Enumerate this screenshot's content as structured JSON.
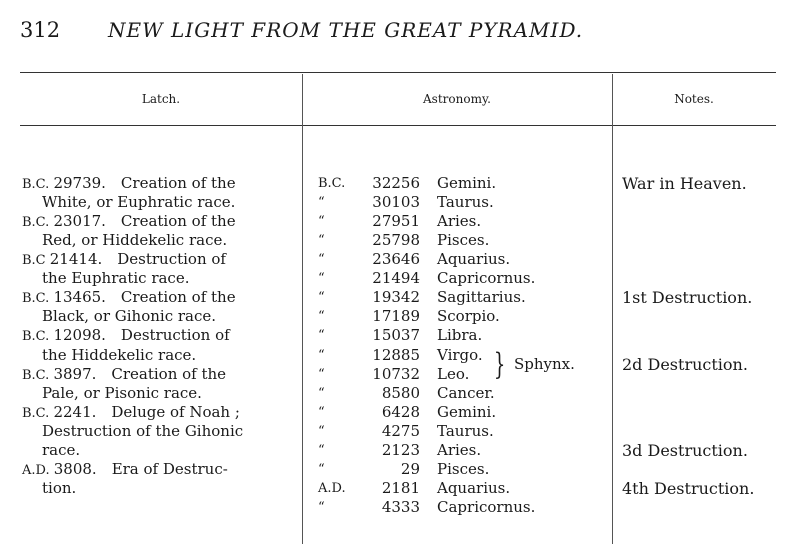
{
  "page_number": "312",
  "running_title": "NEW LIGHT FROM THE GREAT PYRAMID.",
  "headers": {
    "latch": "Latch.",
    "astronomy": "Astronomy.",
    "notes": "Notes."
  },
  "latch": [
    {
      "era": "B.C.",
      "lines": [
        "29739.   Creation of the",
        "White, or Euphratic race."
      ]
    },
    {
      "era": "B.C.",
      "lines": [
        "23017.   Creation of the",
        "Red, or Hiddekelic race."
      ]
    },
    {
      "era": "B.C",
      "lines": [
        "21414.    Destruction of",
        "the Euphratic race."
      ]
    },
    {
      "era": "B.C.",
      "lines": [
        "13465.   Creation of the",
        "Black, or Gihonic race."
      ]
    },
    {
      "era": "B.C.",
      "lines": [
        "12098.    Destruction of",
        "the Hiddekelic race."
      ]
    },
    {
      "era": "B.C.",
      "lines": [
        "3897.    Creation of the",
        "Pale, or Pisonic race."
      ]
    },
    {
      "era": "B.C.",
      "lines": [
        "2241.  Deluge of Noah ;",
        "Destruction of the Gihonic",
        "race."
      ]
    },
    {
      "era": "A.D.",
      "lines": [
        "3808.    Era of Destruc-",
        "tion."
      ]
    }
  ],
  "astronomy": [
    {
      "era": "B.C.",
      "year": "32256",
      "sign": "Gemini."
    },
    {
      "era": "“",
      "year": "30103",
      "sign": "Taurus."
    },
    {
      "era": "“",
      "year": "27951",
      "sign": "Aries."
    },
    {
      "era": "“",
      "year": "25798",
      "sign": "Pisces."
    },
    {
      "era": "“",
      "year": "23646",
      "sign": "Aquarius."
    },
    {
      "era": "“",
      "year": "21494",
      "sign": "Capricornus."
    },
    {
      "era": "“",
      "year": "19342",
      "sign": "Sagittarius."
    },
    {
      "era": "“",
      "year": "17189",
      "sign": "Scorpio."
    },
    {
      "era": "“",
      "year": "15037",
      "sign": "Libra."
    },
    {
      "era": "“",
      "year": "12885",
      "sign": "Virgo."
    },
    {
      "era": "“",
      "year": "10732",
      "sign": "Leo."
    },
    {
      "era": "“",
      "year": "8580",
      "sign": "Cancer."
    },
    {
      "era": "“",
      "year": "6428",
      "sign": "Gemini."
    },
    {
      "era": "“",
      "year": "4275",
      "sign": "Taurus."
    },
    {
      "era": "“",
      "year": "2123",
      "sign": "Aries."
    },
    {
      "era": "“",
      "year": "29",
      "sign": "Pisces."
    },
    {
      "era": "A.D.",
      "year": "2181",
      "sign": "Aquarius."
    },
    {
      "era": "“",
      "year": "4333",
      "sign": "Capricornus."
    }
  ],
  "sphynx": "Sphynx.",
  "notes": [
    {
      "row": 0,
      "text": "War in Heaven."
    },
    {
      "row": 6,
      "text": "1st Destruction."
    },
    {
      "row": 9.5,
      "text": "2d Destruction."
    },
    {
      "row": 14,
      "text": "3d Destruction."
    },
    {
      "row": 16,
      "text": "4th Destruction."
    }
  ]
}
